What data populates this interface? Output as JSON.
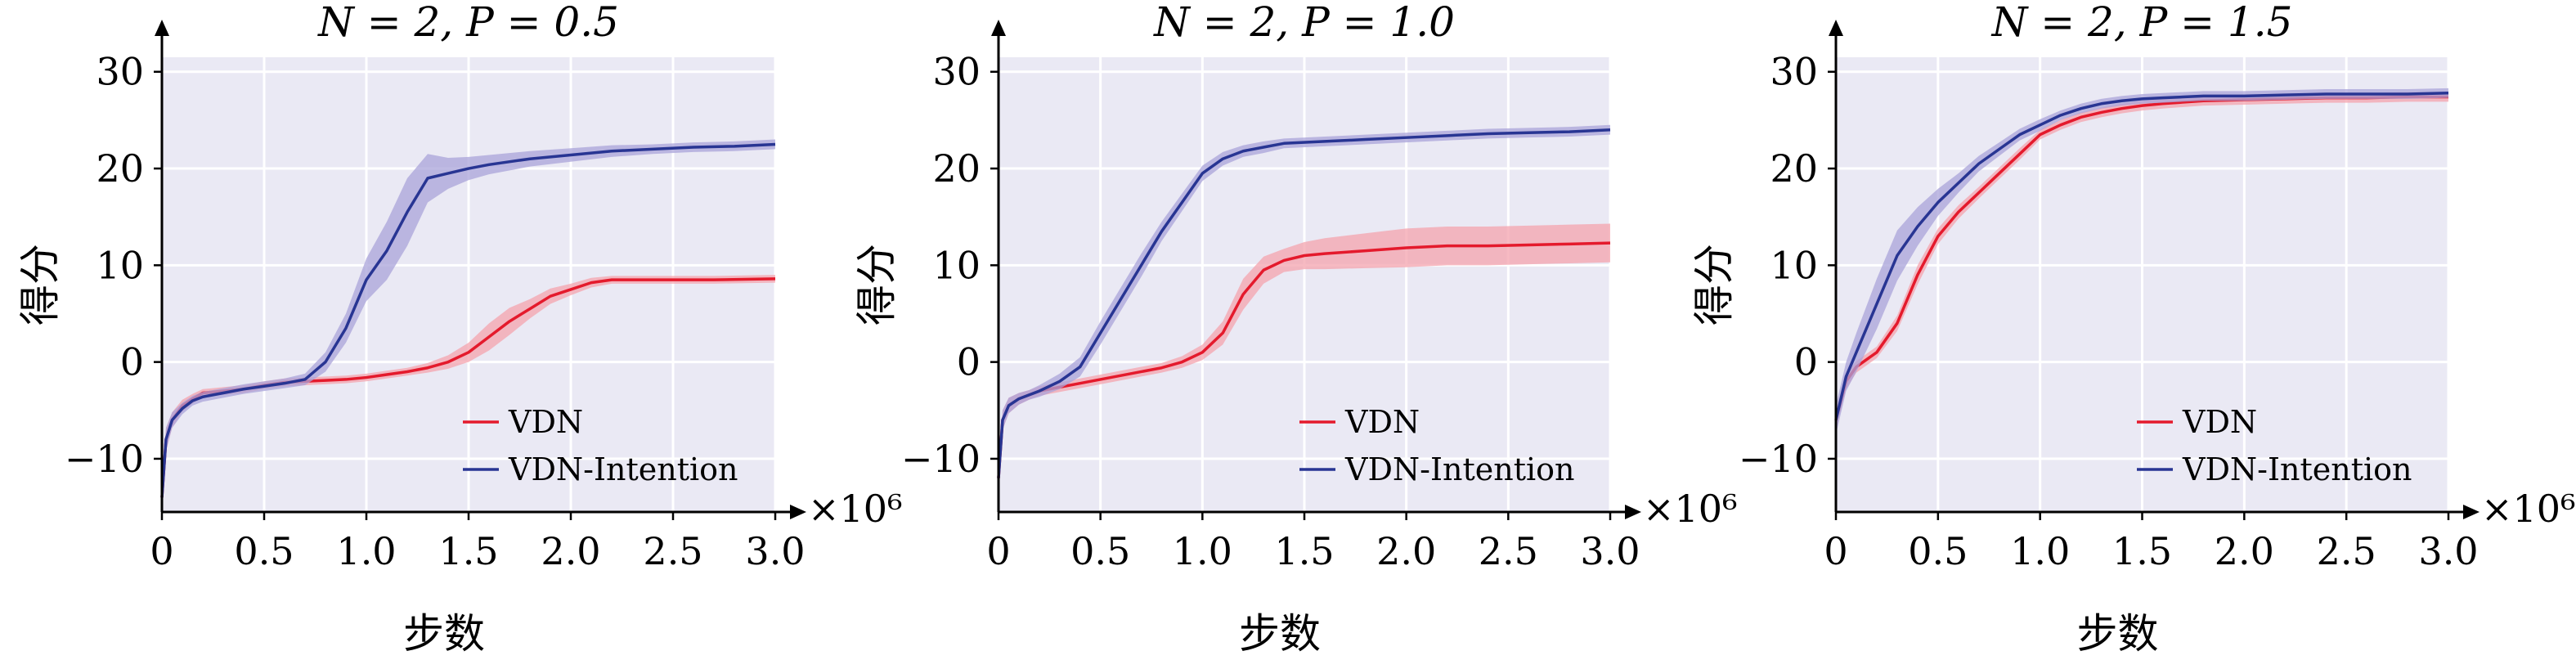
{
  "chart_data": [
    {
      "type": "line",
      "title": "N = 2, P = 0.5",
      "xlabel": "步数",
      "ylabel": "得分",
      "x_multiplier": "×10⁶",
      "xlim": [
        0,
        3.0
      ],
      "ylim": [
        -15.5,
        31.5
      ],
      "xticks": [
        "0",
        "0.5",
        "1.0",
        "1.5",
        "2.0",
        "2.5",
        "3.0"
      ],
      "yticks": [
        "30",
        "20",
        "10",
        "0",
        "−10"
      ],
      "grid": true,
      "legend_position": "lower-right",
      "series": [
        {
          "name": "VDN",
          "color": "#e41a2c",
          "band_color": "#f4a3ad",
          "x": [
            0,
            0.02,
            0.05,
            0.1,
            0.15,
            0.2,
            0.3,
            0.4,
            0.5,
            0.6,
            0.7,
            0.8,
            0.9,
            1.0,
            1.1,
            1.2,
            1.3,
            1.4,
            1.5,
            1.6,
            1.7,
            1.8,
            1.9,
            2.0,
            2.1,
            2.2,
            2.3,
            2.5,
            2.7,
            3.0
          ],
          "y": [
            -14,
            -8,
            -6,
            -4.5,
            -3.8,
            -3.2,
            -3,
            -2.8,
            -2.4,
            -2.1,
            -2,
            -1.9,
            -1.8,
            -1.6,
            -1.3,
            -1,
            -0.6,
            0,
            1,
            2.6,
            4.2,
            5.5,
            6.8,
            7.5,
            8.2,
            8.5,
            8.5,
            8.5,
            8.5,
            8.6
          ],
          "band": [
            1,
            1.2,
            0.8,
            0.6,
            0.5,
            0.4,
            0.4,
            0.4,
            0.4,
            0.4,
            0.4,
            0.4,
            0.4,
            0.4,
            0.4,
            0.4,
            0.5,
            0.7,
            1,
            1.4,
            1.4,
            1,
            0.8,
            0.6,
            0.5,
            0.4,
            0.4,
            0.4,
            0.4,
            0.4
          ]
        },
        {
          "name": "VDN-Intention",
          "color": "#283593",
          "band_color": "#a9a3da",
          "x": [
            0,
            0.02,
            0.05,
            0.1,
            0.15,
            0.2,
            0.3,
            0.4,
            0.5,
            0.6,
            0.7,
            0.8,
            0.9,
            1.0,
            1.1,
            1.2,
            1.3,
            1.4,
            1.5,
            1.6,
            1.8,
            2.0,
            2.2,
            2.4,
            2.6,
            2.8,
            3.0
          ],
          "y": [
            -14,
            -8,
            -6,
            -4.8,
            -4,
            -3.6,
            -3.2,
            -2.8,
            -2.5,
            -2.2,
            -1.8,
            0,
            3.5,
            8.5,
            11.5,
            15.5,
            19,
            19.5,
            20,
            20.4,
            21,
            21.4,
            21.8,
            22,
            22.2,
            22.3,
            22.5
          ],
          "band": [
            1,
            1.2,
            0.8,
            0.6,
            0.5,
            0.5,
            0.5,
            0.5,
            0.5,
            0.5,
            0.6,
            1,
            1.5,
            2.2,
            3,
            3.5,
            2.5,
            1.6,
            1.2,
            1,
            0.8,
            0.7,
            0.6,
            0.5,
            0.5,
            0.5,
            0.5
          ]
        }
      ]
    },
    {
      "type": "line",
      "title": "N = 2, P = 1.0",
      "xlabel": "步数",
      "ylabel": "得分",
      "x_multiplier": "×10⁶",
      "xlim": [
        0,
        3.0
      ],
      "ylim": [
        -15.5,
        31.5
      ],
      "xticks": [
        "0",
        "0.5",
        "1.0",
        "1.5",
        "2.0",
        "2.5",
        "3.0"
      ],
      "yticks": [
        "30",
        "20",
        "10",
        "0",
        "−10"
      ],
      "grid": true,
      "legend_position": "lower-right",
      "series": [
        {
          "name": "VDN",
          "color": "#e41a2c",
          "band_color": "#f4a3ad",
          "x": [
            0,
            0.02,
            0.05,
            0.1,
            0.15,
            0.2,
            0.3,
            0.4,
            0.5,
            0.6,
            0.7,
            0.8,
            0.9,
            1.0,
            1.1,
            1.2,
            1.3,
            1.4,
            1.5,
            1.6,
            1.8,
            2.0,
            2.2,
            2.4,
            2.6,
            2.8,
            3.0
          ],
          "y": [
            -12,
            -6,
            -4.5,
            -3.8,
            -3.4,
            -3,
            -2.6,
            -2.2,
            -1.8,
            -1.4,
            -1,
            -0.6,
            0,
            1,
            3,
            7,
            9.5,
            10.5,
            11,
            11.2,
            11.5,
            11.8,
            12,
            12,
            12.1,
            12.2,
            12.3
          ],
          "band": [
            1,
            1,
            0.8,
            0.6,
            0.5,
            0.5,
            0.5,
            0.5,
            0.5,
            0.5,
            0.5,
            0.5,
            0.6,
            0.8,
            1.2,
            1.6,
            1.4,
            1.2,
            1.4,
            1.6,
            1.8,
            2,
            2,
            2,
            2,
            2,
            2
          ]
        },
        {
          "name": "VDN-Intention",
          "color": "#283593",
          "band_color": "#a9a3da",
          "x": [
            0,
            0.02,
            0.05,
            0.1,
            0.15,
            0.2,
            0.3,
            0.4,
            0.5,
            0.6,
            0.7,
            0.8,
            0.9,
            1.0,
            1.1,
            1.2,
            1.3,
            1.4,
            1.6,
            1.8,
            2.0,
            2.2,
            2.4,
            2.6,
            2.8,
            3.0
          ],
          "y": [
            -12,
            -6,
            -4.5,
            -3.8,
            -3.4,
            -3,
            -2,
            -0.5,
            3,
            6.5,
            10,
            13.5,
            16.5,
            19.5,
            21,
            21.8,
            22.2,
            22.6,
            22.8,
            23,
            23.2,
            23.4,
            23.6,
            23.7,
            23.8,
            24
          ],
          "band": [
            1,
            1,
            0.8,
            0.6,
            0.5,
            0.6,
            0.8,
            1,
            1.2,
            1.2,
            1.2,
            1,
            0.9,
            0.8,
            0.7,
            0.6,
            0.6,
            0.5,
            0.5,
            0.5,
            0.5,
            0.5,
            0.5,
            0.5,
            0.5,
            0.5
          ]
        }
      ]
    },
    {
      "type": "line",
      "title": "N = 2, P = 1.5",
      "xlabel": "步数",
      "ylabel": "得分",
      "x_multiplier": "×10⁶",
      "xlim": [
        0,
        3.0
      ],
      "ylim": [
        -15.5,
        31.5
      ],
      "xticks": [
        "0",
        "0.5",
        "1.0",
        "1.5",
        "2.0",
        "2.5",
        "3.0"
      ],
      "yticks": [
        "30",
        "20",
        "10",
        "0",
        "−10"
      ],
      "grid": true,
      "legend_position": "lower-right",
      "series": [
        {
          "name": "VDN",
          "color": "#e41a2c",
          "band_color": "#f4a3ad",
          "x": [
            0,
            0.05,
            0.1,
            0.2,
            0.3,
            0.4,
            0.5,
            0.6,
            0.7,
            0.8,
            0.9,
            1.0,
            1.1,
            1.2,
            1.3,
            1.4,
            1.5,
            1.6,
            1.8,
            2.0,
            2.2,
            2.4,
            2.6,
            2.8,
            3.0
          ],
          "y": [
            -6,
            -2,
            -0.5,
            1,
            4,
            9,
            13,
            15.5,
            17.5,
            19.5,
            21.5,
            23.5,
            24.5,
            25.3,
            25.8,
            26.2,
            26.5,
            26.7,
            27,
            27.1,
            27.2,
            27.3,
            27.3,
            27.4,
            27.4
          ],
          "band": [
            1,
            0.8,
            0.6,
            0.6,
            0.8,
            1,
            0.8,
            0.7,
            0.6,
            0.6,
            0.6,
            0.5,
            0.5,
            0.5,
            0.5,
            0.5,
            0.5,
            0.5,
            0.5,
            0.5,
            0.5,
            0.5,
            0.5,
            0.5,
            0.5
          ]
        },
        {
          "name": "VDN-Intention",
          "color": "#283593",
          "band_color": "#a9a3da",
          "x": [
            0,
            0.05,
            0.1,
            0.2,
            0.3,
            0.4,
            0.5,
            0.6,
            0.7,
            0.8,
            0.9,
            1.0,
            1.1,
            1.2,
            1.3,
            1.4,
            1.5,
            1.6,
            1.8,
            2.0,
            2.2,
            2.4,
            2.6,
            2.8,
            3.0
          ],
          "y": [
            -6,
            -1.5,
            1,
            6,
            11,
            14,
            16.5,
            18.5,
            20.5,
            22,
            23.5,
            24.5,
            25.5,
            26.2,
            26.7,
            27,
            27.2,
            27.3,
            27.5,
            27.5,
            27.6,
            27.7,
            27.7,
            27.7,
            27.8
          ],
          "band": [
            1.5,
            1.5,
            2,
            2.6,
            2.6,
            2,
            1.4,
            1,
            0.8,
            0.7,
            0.6,
            0.6,
            0.5,
            0.5,
            0.5,
            0.5,
            0.5,
            0.5,
            0.5,
            0.5,
            0.5,
            0.5,
            0.5,
            0.5,
            0.5
          ]
        }
      ]
    }
  ]
}
